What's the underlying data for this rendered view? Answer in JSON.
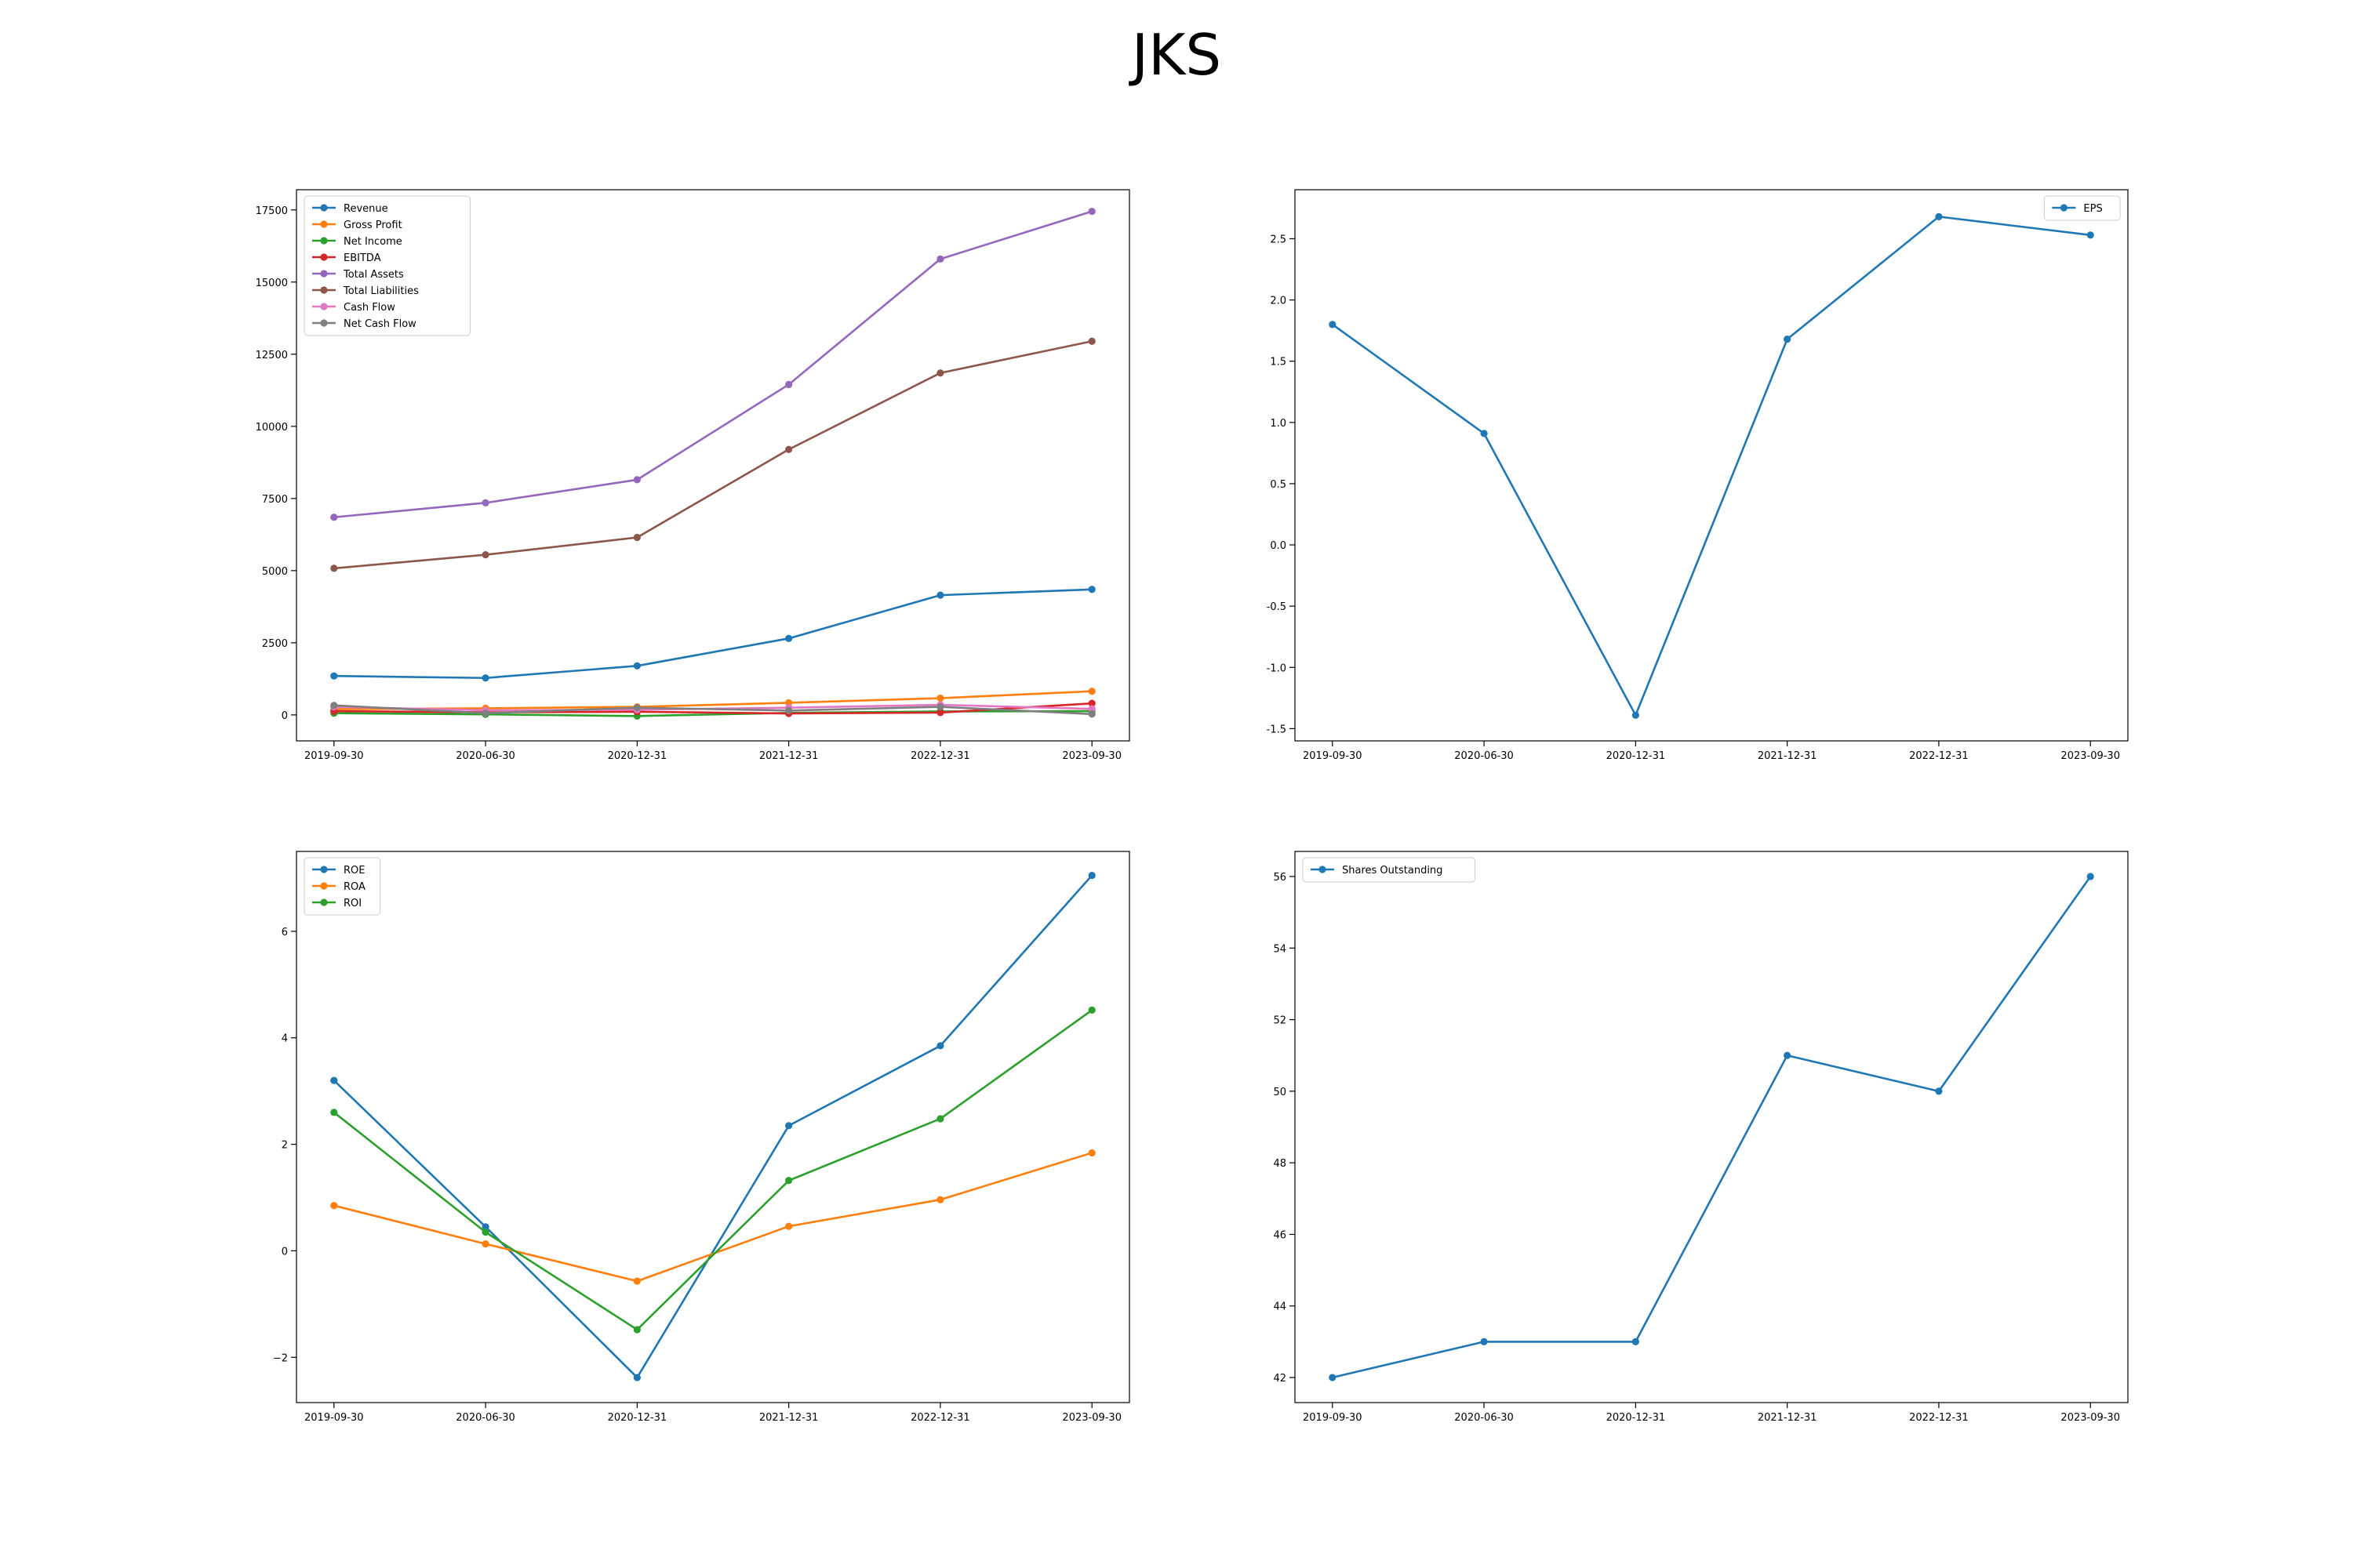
{
  "title": "JKS",
  "chart_data": [
    {
      "type": "line",
      "categories": [
        "2019-09-30",
        "2020-06-30",
        "2020-12-31",
        "2021-12-31",
        "2022-12-31",
        "2023-09-30"
      ],
      "y_ticks": [
        "0",
        "2500",
        "5000",
        "7500",
        "10000",
        "12500",
        "15000",
        "17500"
      ],
      "ylim": [
        -900,
        18200
      ],
      "legend_loc": "upper-left",
      "grid": false,
      "series": [
        {
          "name": "Revenue",
          "color": "#1f77b4",
          "values": [
            1350,
            1280,
            1700,
            2650,
            4150,
            4350
          ]
        },
        {
          "name": "Gross Profit",
          "color": "#ff7f0e",
          "values": [
            200,
            230,
            280,
            420,
            580,
            820
          ]
        },
        {
          "name": "Net Income",
          "color": "#2ca02c",
          "values": [
            60,
            20,
            -40,
            70,
            120,
            130
          ]
        },
        {
          "name": "EBITDA",
          "color": "#d62728",
          "values": [
            130,
            90,
            110,
            50,
            80,
            400
          ]
        },
        {
          "name": "Total Assets",
          "color": "#9467bd",
          "values": [
            6850,
            7350,
            8150,
            11450,
            15800,
            17450
          ]
        },
        {
          "name": "Total Liabilities",
          "color": "#8c564b",
          "values": [
            5080,
            5550,
            6150,
            9200,
            11850,
            12950
          ]
        },
        {
          "name": "Cash Flow",
          "color": "#e377c2",
          "values": [
            280,
            160,
            180,
            250,
            350,
            210
          ]
        },
        {
          "name": "Net Cash Flow",
          "color": "#7f7f7f",
          "values": [
            330,
            60,
            250,
            150,
            280,
            30
          ]
        }
      ]
    },
    {
      "type": "line",
      "categories": [
        "2019-09-30",
        "2020-06-30",
        "2020-12-31",
        "2021-12-31",
        "2022-12-31",
        "2023-09-30"
      ],
      "y_ticks": [
        "-1.5",
        "-1.0",
        "-0.5",
        "0.0",
        "0.5",
        "1.0",
        "1.5",
        "2.0",
        "2.5"
      ],
      "ylim": [
        -1.6,
        2.9
      ],
      "legend_loc": "upper-right",
      "grid": false,
      "series": [
        {
          "name": "EPS",
          "color": "#1f77b4",
          "values": [
            1.8,
            0.91,
            -1.39,
            1.68,
            2.68,
            2.53
          ]
        }
      ]
    },
    {
      "type": "line",
      "categories": [
        "2019-09-30",
        "2020-06-30",
        "2020-12-31",
        "2021-12-31",
        "2022-12-31",
        "2023-09-30"
      ],
      "y_ticks": [
        "−2",
        "0",
        "2",
        "4",
        "6"
      ],
      "ylim": [
        -2.85,
        7.5
      ],
      "legend_loc": "upper-left",
      "grid": false,
      "series": [
        {
          "name": "ROE",
          "color": "#1f77b4",
          "values": [
            3.2,
            0.45,
            -2.38,
            2.35,
            3.85,
            7.05
          ]
        },
        {
          "name": "ROA",
          "color": "#ff7f0e",
          "values": [
            0.85,
            0.13,
            -0.57,
            0.46,
            0.96,
            1.84
          ]
        },
        {
          "name": "ROI",
          "color": "#2ca02c",
          "values": [
            2.6,
            0.35,
            -1.48,
            1.32,
            2.48,
            4.52
          ]
        }
      ]
    },
    {
      "type": "line",
      "categories": [
        "2019-09-30",
        "2020-06-30",
        "2020-12-31",
        "2021-12-31",
        "2022-12-31",
        "2023-09-30"
      ],
      "y_ticks": [
        "42",
        "44",
        "46",
        "48",
        "50",
        "52",
        "54",
        "56"
      ],
      "ylim": [
        41.3,
        56.7
      ],
      "legend_loc": "upper-left",
      "grid": false,
      "series": [
        {
          "name": "Shares Outstanding",
          "color": "#1f77b4",
          "values": [
            42,
            43,
            43,
            51,
            50,
            56
          ]
        }
      ]
    }
  ]
}
